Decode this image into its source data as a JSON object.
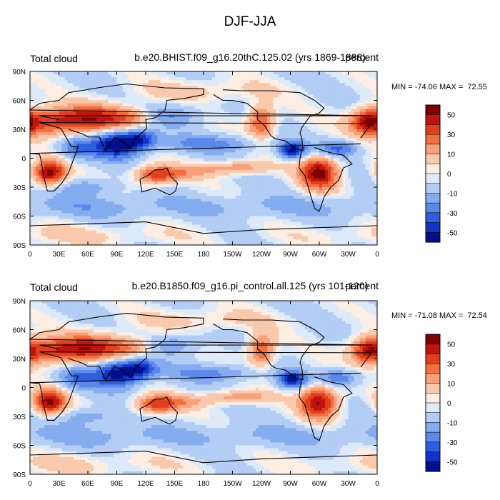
{
  "title": "DJF-JJA",
  "panels": [
    {
      "left_label": "Total cloud",
      "center_label": "b.e20.BHIST.f09_g16.20thC.125.02 (yrs 1869-1888)",
      "right_label": "percent",
      "stats": "MIN = -74.06 MAX =  72.55"
    },
    {
      "left_label": "Total cloud",
      "center_label": "b.e20.B1850.f09_g16.pi_control.all.125 (yrs 101-120)",
      "right_label": "percent",
      "stats": "MIN = -71.08 MAX =  72.54"
    }
  ],
  "colorbar": {
    "labels": [
      "50",
      "30",
      "10",
      "0",
      "-10",
      "-30",
      "-50"
    ],
    "colors": [
      "#800000",
      "#c0150c",
      "#e0401e",
      "#f2703f",
      "#f7a07a",
      "#f9c9ad",
      "#fdeee4",
      "#dceaf9",
      "#b3cdf5",
      "#85acef",
      "#5b89ea",
      "#2f5fdc",
      "#1233c8",
      "#03108c"
    ]
  },
  "chart_data": [
    {
      "type": "heatmap",
      "title": "Total cloud",
      "subtitle": "b.e20.BHIST.f09_g16.20thC.125.02 (yrs 1869-1888)",
      "units": "percent",
      "x_ticks": [
        "0",
        "30E",
        "60E",
        "90E",
        "120E",
        "150E",
        "180",
        "150W",
        "120W",
        "90W",
        "60W",
        "30W",
        "0"
      ],
      "y_ticks": [
        "90N",
        "60N",
        "30N",
        "0",
        "30S",
        "60S",
        "90S"
      ],
      "xlim": [
        0,
        360
      ],
      "ylim": [
        -90,
        90
      ],
      "min": -74.06,
      "max": 72.55,
      "levels": [
        -60,
        -50,
        -40,
        -30,
        -20,
        -10,
        0,
        5,
        10,
        20,
        30,
        40,
        50,
        60
      ]
    },
    {
      "type": "heatmap",
      "title": "Total cloud",
      "subtitle": "b.e20.B1850.f09_g16.pi_control.all.125 (yrs 101-120)",
      "units": "percent",
      "x_ticks": [
        "0",
        "30E",
        "60E",
        "90E",
        "120E",
        "150E",
        "180",
        "150W",
        "120W",
        "90W",
        "60W",
        "30W",
        "0"
      ],
      "y_ticks": [
        "90N",
        "60N",
        "30N",
        "0",
        "30S",
        "60S",
        "90S"
      ],
      "xlim": [
        0,
        360
      ],
      "ylim": [
        -90,
        90
      ],
      "min": -71.08,
      "max": 72.54,
      "levels": [
        -60,
        -50,
        -40,
        -30,
        -20,
        -10,
        0,
        5,
        10,
        20,
        30,
        40,
        50,
        60
      ]
    }
  ]
}
